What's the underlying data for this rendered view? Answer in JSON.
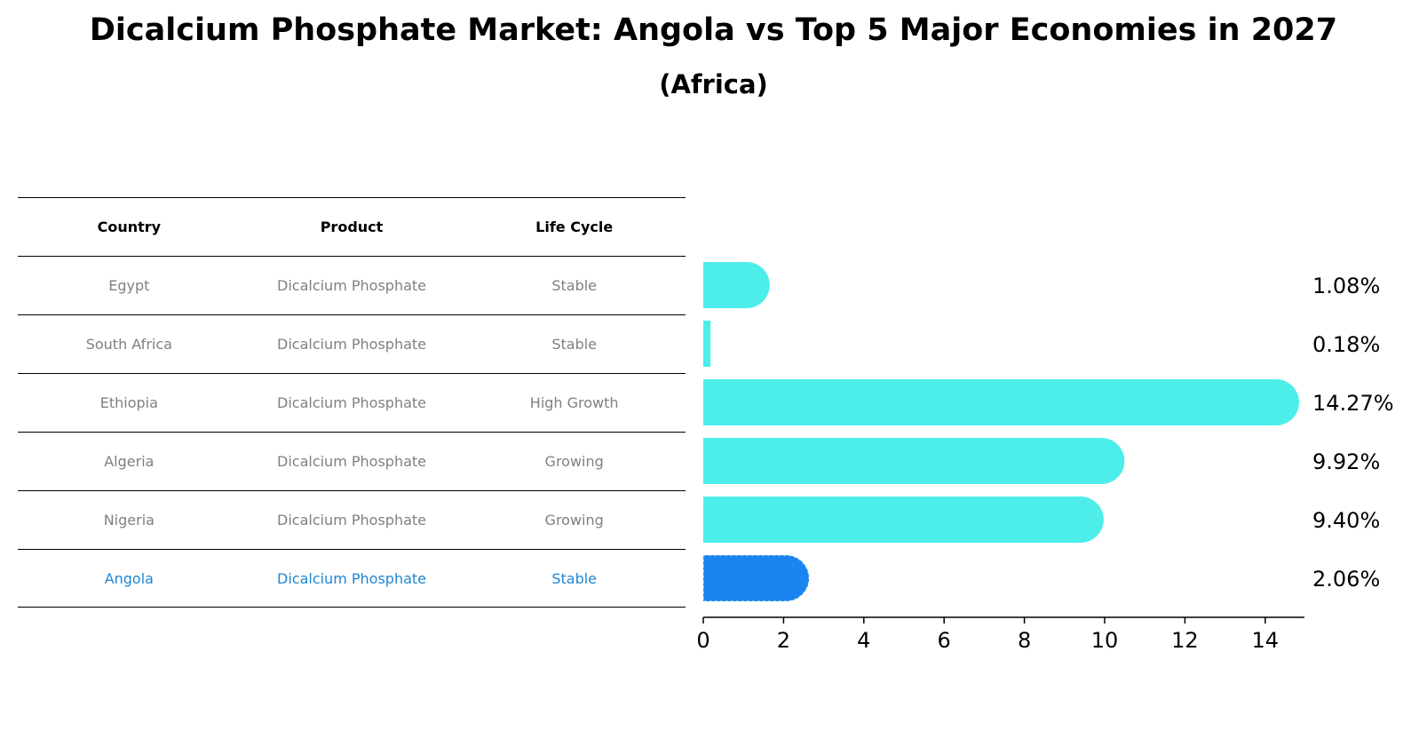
{
  "title": "Dicalcium Phosphate Market: Angola vs Top 5 Major Economies in 2027",
  "subtitle": "(Africa)",
  "table": {
    "headers": [
      "Country",
      "Product",
      "Life Cycle"
    ],
    "rows": [
      [
        "Egypt",
        "Dicalcium Phosphate",
        "Stable"
      ],
      [
        "South Africa",
        "Dicalcium Phosphate",
        "Stable"
      ],
      [
        "Ethiopia",
        "Dicalcium Phosphate",
        "High Growth"
      ],
      [
        "Algeria",
        "Dicalcium Phosphate",
        "Growing"
      ],
      [
        "Nigeria",
        "Dicalcium Phosphate",
        "Growing"
      ],
      [
        "Angola",
        "Dicalcium Phosphate",
        "Stable"
      ]
    ],
    "highlight_row": 5
  },
  "chart_data": {
    "type": "bar",
    "orientation": "horizontal",
    "categories": [
      "Egypt",
      "South Africa",
      "Ethiopia",
      "Algeria",
      "Nigeria",
      "Angola"
    ],
    "values": [
      1.08,
      0.18,
      14.27,
      9.92,
      9.4,
      2.06
    ],
    "value_labels": [
      "1.08%",
      "0.18%",
      "14.27%",
      "9.92%",
      "9.40%",
      "2.06%"
    ],
    "xlim": [
      0,
      15
    ],
    "xticks": [
      0,
      2,
      4,
      6,
      8,
      10,
      12,
      14
    ],
    "colors": {
      "default": "#4deeea",
      "highlight": "#1a85f0"
    },
    "highlight_index": 5
  }
}
